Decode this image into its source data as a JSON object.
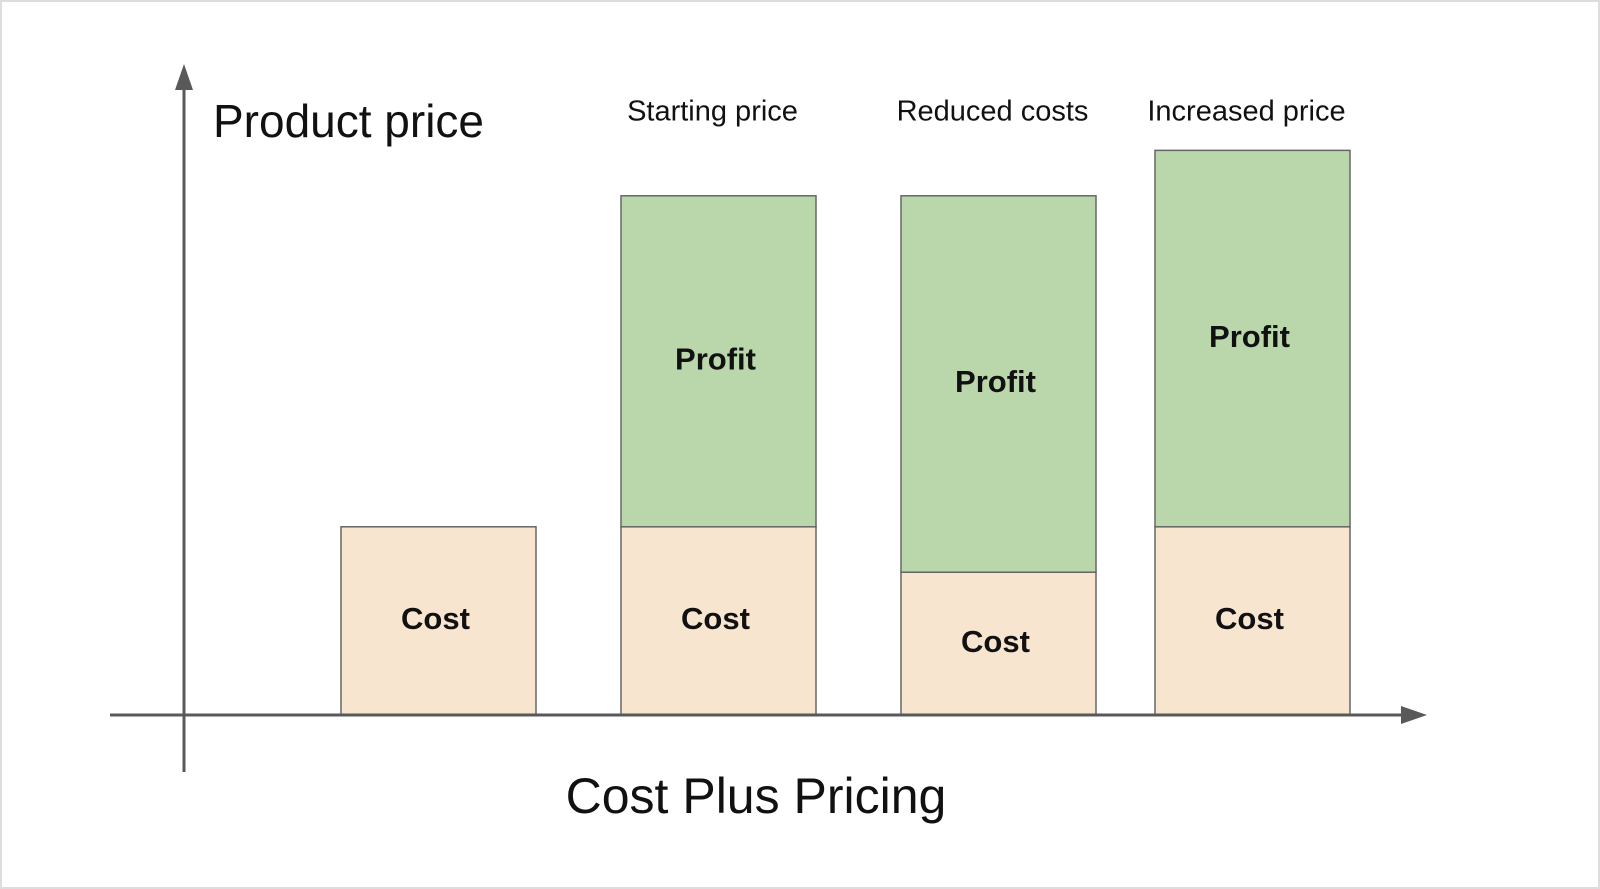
{
  "chart_data": {
    "type": "stacked-bar",
    "title": "Cost Plus Pricing",
    "y_label": "Product price",
    "categories": [
      null,
      "Starting price",
      "Reduced costs",
      "Increased price"
    ],
    "series": [
      {
        "name": "Cost",
        "color": "#f8e5d0",
        "values": [
          29,
          29,
          22,
          29
        ]
      },
      {
        "name": "Profit",
        "color": "#bad7ab",
        "values": [
          null,
          51,
          58,
          58
        ]
      }
    ],
    "ylim": [
      0,
      100
    ]
  }
}
